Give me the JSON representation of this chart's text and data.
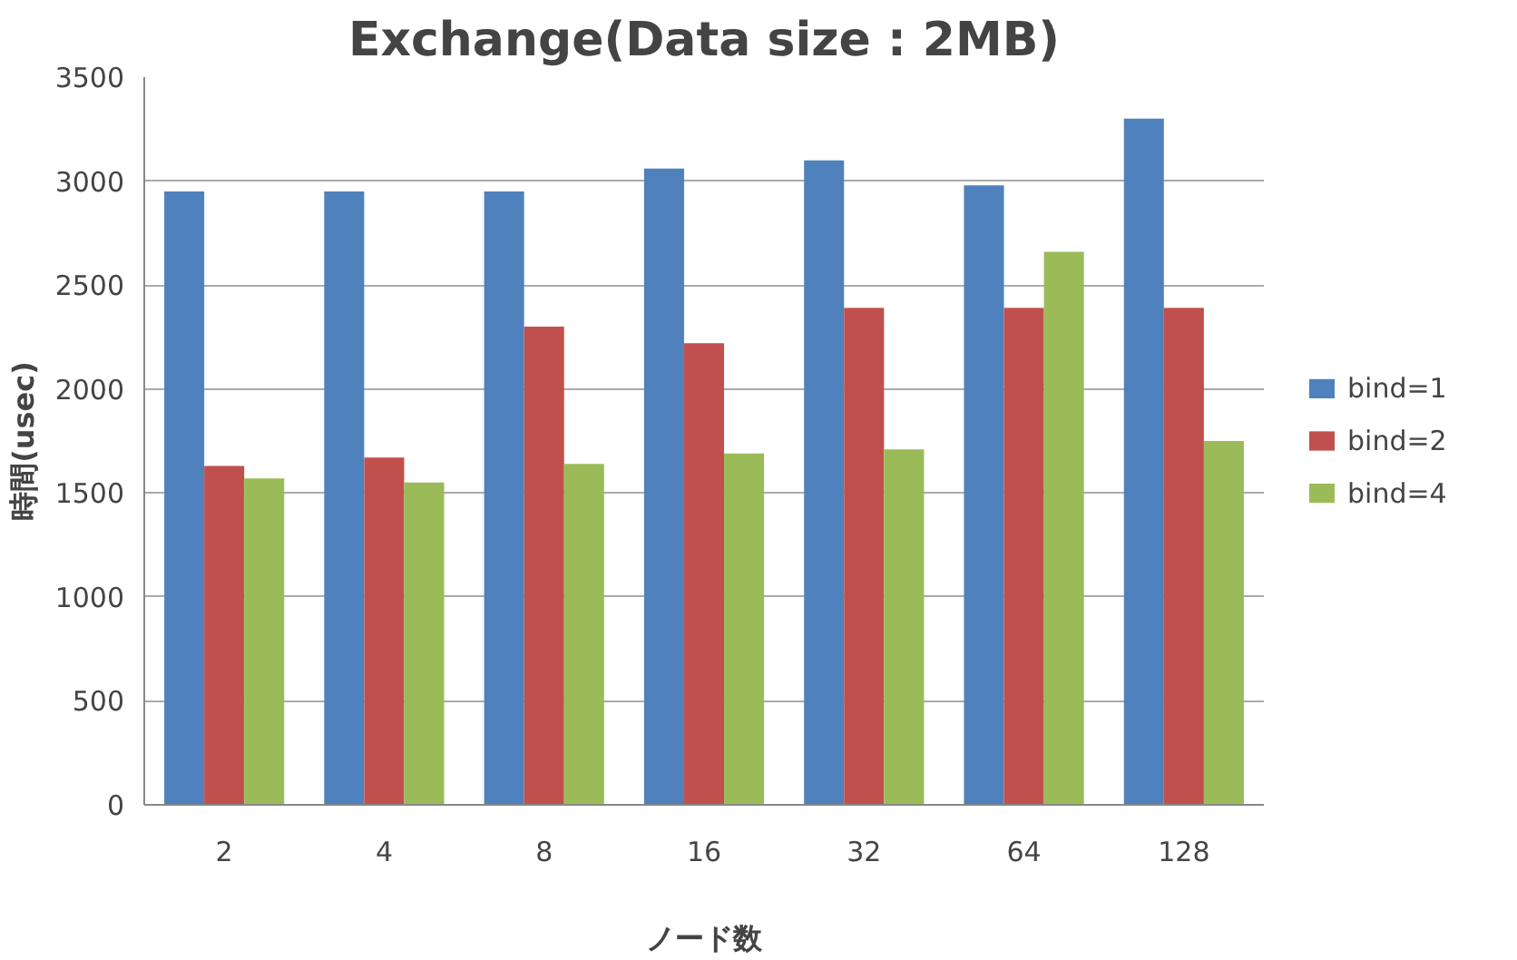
{
  "chart_data": {
    "type": "bar",
    "title": "Exchange(Data size : 2MB)",
    "xlabel": "ノード数",
    "ylabel": "時間(usec)",
    "categories": [
      "2",
      "4",
      "8",
      "16",
      "32",
      "64",
      "128"
    ],
    "series": [
      {
        "name": "bind=1",
        "color": "#4f81bd",
        "values": [
          2950,
          2950,
          2950,
          3060,
          3100,
          2980,
          3300
        ]
      },
      {
        "name": "bind=2",
        "color": "#c0504d",
        "values": [
          1630,
          1670,
          2300,
          2220,
          2390,
          2390,
          2390
        ]
      },
      {
        "name": "bind=4",
        "color": "#9bbb59",
        "values": [
          1570,
          1550,
          1640,
          1690,
          1710,
          2660,
          1750
        ]
      }
    ],
    "ylim": [
      0,
      3500
    ],
    "yticks": [
      0,
      500,
      1000,
      1500,
      2000,
      2500,
      3000,
      3500
    ],
    "grid": "y",
    "legend": "right"
  }
}
